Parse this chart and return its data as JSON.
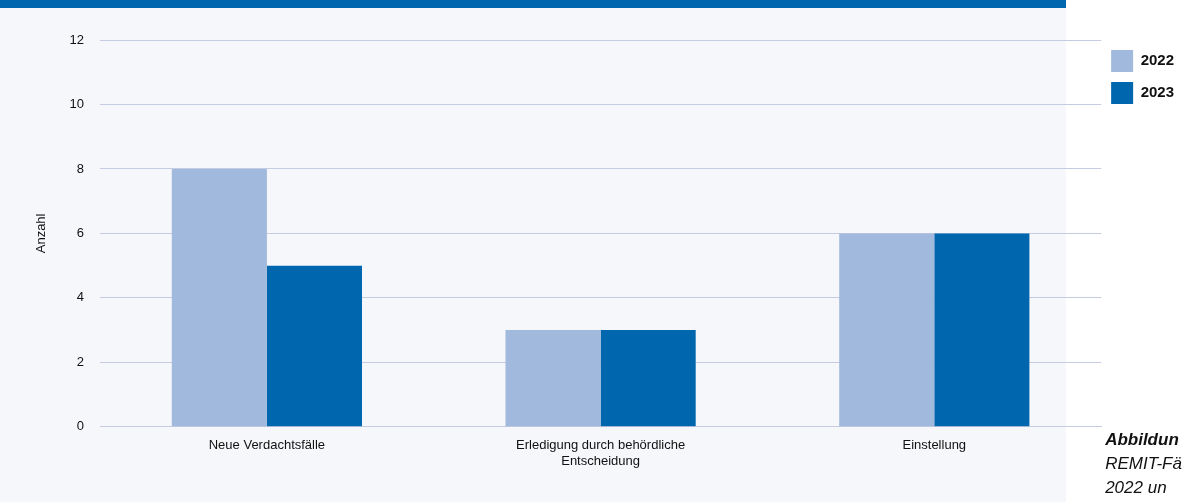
{
  "chart_data": {
    "type": "bar",
    "ylabel": "Anzahl",
    "categories": [
      "Neue Verdachtsfälle",
      "Erledigung durch behördliche Entscheidung",
      "Einstellung"
    ],
    "series": [
      {
        "name": "2022",
        "color": "#a1b9dc",
        "values": [
          8,
          3,
          6
        ]
      },
      {
        "name": "2023",
        "color": "#0066ad",
        "values": [
          5,
          3,
          6
        ]
      }
    ],
    "ylim": [
      0,
      12
    ],
    "yticks": [
      0,
      2,
      4,
      6,
      8,
      10,
      12
    ],
    "grid": "y",
    "legend": "top right",
    "annotations": [
      "Abbildun",
      "REMIT-Fä",
      "2022 un"
    ]
  }
}
